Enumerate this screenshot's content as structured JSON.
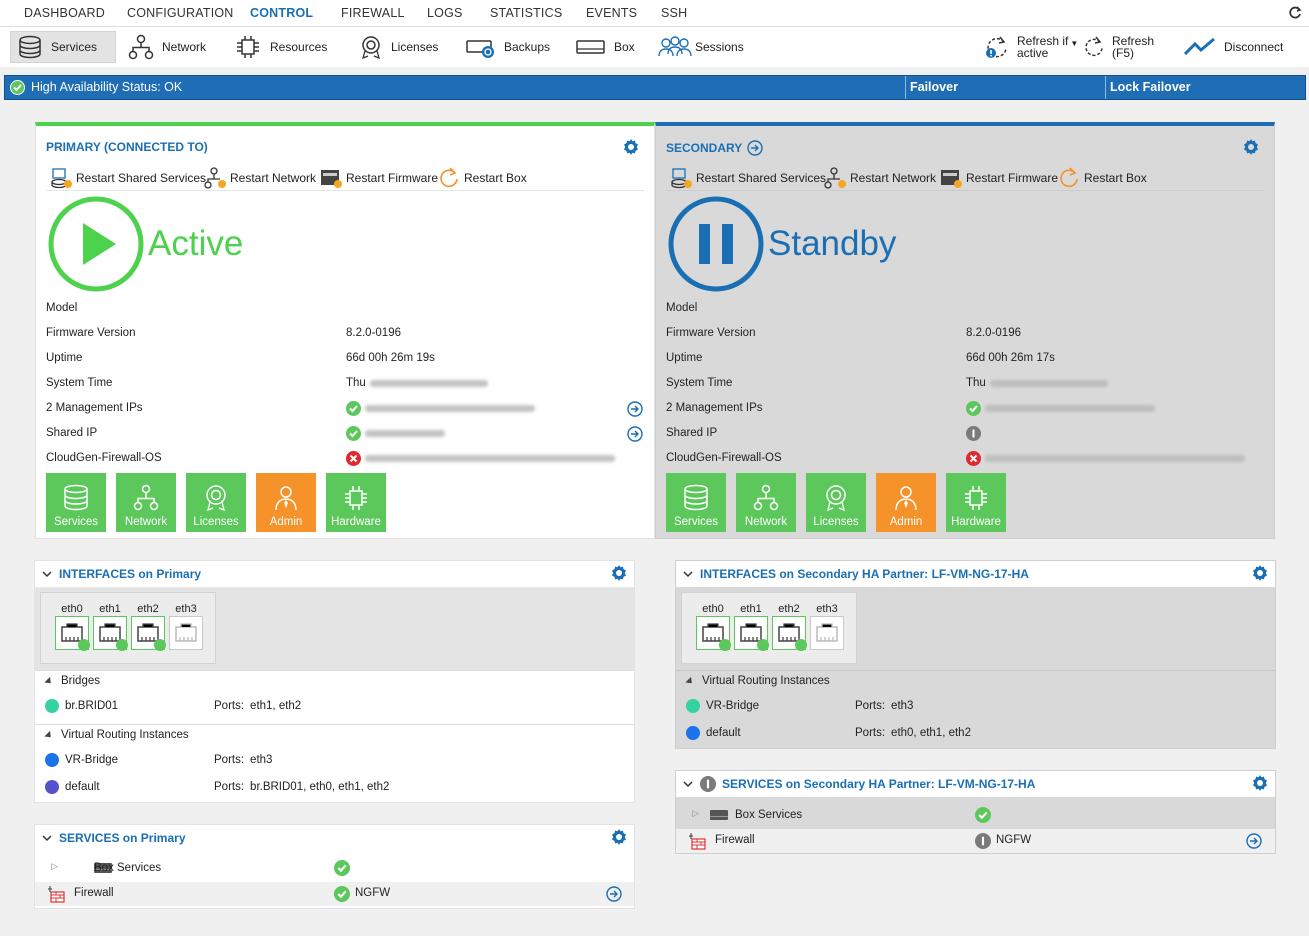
{
  "nav": {
    "tabs": [
      "DASHBOARD",
      "CONFIGURATION",
      "CONTROL",
      "FIREWALL",
      "LOGS",
      "STATISTICS",
      "EVENTS",
      "SSH"
    ],
    "active": "CONTROL"
  },
  "toolbar": {
    "services": "Services",
    "network": "Network",
    "resources": "Resources",
    "licenses": "Licenses",
    "backups": "Backups",
    "box": "Box",
    "sessions": "Sessions",
    "refresh_if_1": "Refresh if",
    "refresh_if_2": "active",
    "refresh_1": "Refresh",
    "refresh_2": "(F5)",
    "disconnect": "Disconnect"
  },
  "ha": {
    "status": "High Availability Status: OK",
    "failover": "Failover",
    "lock_failover": "Lock Failover"
  },
  "actions": {
    "restart_shared": "Restart Shared Services",
    "restart_network": "Restart Network",
    "restart_firmware": "Restart Firmware",
    "restart_box": "Restart Box"
  },
  "labels": {
    "model": "Model",
    "firmware": "Firmware Version",
    "uptime": "Uptime",
    "system_time": "System Time",
    "mgmt_ips": "2 Management IPs",
    "shared_ip": "Shared IP",
    "os": "CloudGen-Firewall-OS"
  },
  "tiles": {
    "services": "Services",
    "network": "Network",
    "licenses": "Licenses",
    "admin": "Admin",
    "hardware": "Hardware"
  },
  "primary": {
    "title": "PRIMARY (CONNECTED TO)",
    "status": "Active",
    "firmware": "8.2.0-0196",
    "uptime": "66d 00h 26m 19s",
    "time_prefix": "Thu"
  },
  "secondary": {
    "title": "SECONDARY",
    "status": "Standby",
    "firmware": "8.2.0-0196",
    "uptime": "66d 00h 26m 17s",
    "time_prefix": "Thu"
  },
  "colors": {
    "accent": "#1a6fb4",
    "active": "#4cd24c",
    "ha_bar": "#1e6db5",
    "admin": "#f5922a",
    "tile": "#5cc85c"
  },
  "ifaces_primary": {
    "title": "INTERFACES on Primary",
    "ports": [
      "eth0",
      "eth1",
      "eth2",
      "eth3"
    ],
    "bridges_label": "Bridges",
    "bridges": [
      {
        "name": "br.BRID01",
        "ports_label": "Ports:",
        "ports": "eth1, eth2"
      }
    ],
    "vr_label": "Virtual Routing Instances",
    "vr": [
      {
        "name": "VR-Bridge",
        "ports_label": "Ports:",
        "ports": "eth3"
      },
      {
        "name": "default",
        "ports_label": "Ports:",
        "ports": "br.BRID01, eth0, eth1, eth2"
      }
    ]
  },
  "ifaces_secondary": {
    "title": "INTERFACES on Secondary HA Partner: LF-VM-NG-17-HA",
    "ports": [
      "eth0",
      "eth1",
      "eth2",
      "eth3"
    ],
    "vr_label": "Virtual Routing Instances",
    "vr": [
      {
        "name": "VR-Bridge",
        "ports_label": "Ports:",
        "ports": "eth3"
      },
      {
        "name": "default",
        "ports_label": "Ports:",
        "ports": "eth0, eth1, eth2"
      }
    ]
  },
  "svc_primary": {
    "title": "SERVICES on Primary",
    "box": "Box Services",
    "firewall": "Firewall",
    "fw_value": "NGFW"
  },
  "svc_secondary": {
    "title": "SERVICES on Secondary HA Partner: LF-VM-NG-17-HA",
    "box": "Box Services",
    "firewall": "Firewall",
    "fw_value": "NGFW"
  }
}
